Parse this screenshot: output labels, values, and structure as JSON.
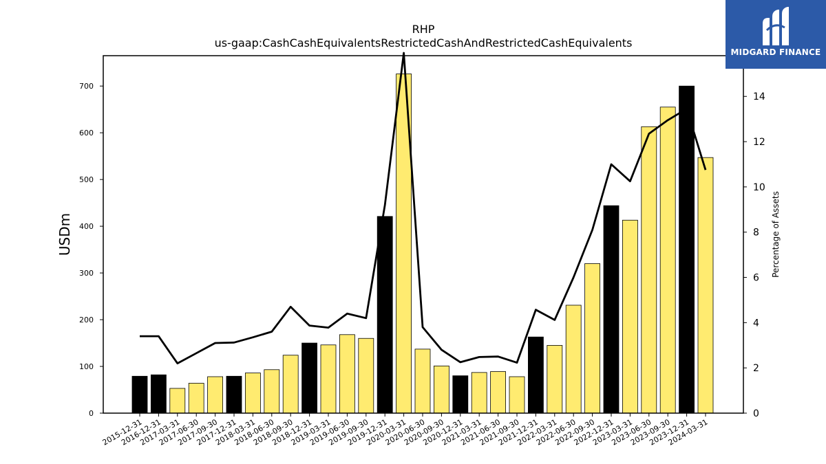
{
  "chart_data": {
    "type": "bar",
    "title": "RHP",
    "subtitle": "us-gaap:CashCashEquivalentsRestrictedCashAndRestrictedCashEquivalents",
    "ylabel": "USDm",
    "y2label": "Percentage of Assets",
    "ylim": [
      0,
      765
    ],
    "y2lim": [
      0,
      15.8
    ],
    "yticks": [
      0,
      100,
      200,
      300,
      400,
      500,
      600,
      700
    ],
    "y2ticks": [
      0,
      2,
      4,
      6,
      8,
      10,
      12,
      14
    ],
    "categories": [
      "2015-12-31",
      "2016-12-31",
      "2017-03-31",
      "2017-06-30",
      "2017-09-30",
      "2017-12-31",
      "2018-03-31",
      "2018-06-30",
      "2018-09-30",
      "2018-12-31",
      "2019-03-31",
      "2019-06-30",
      "2019-09-30",
      "2019-12-31",
      "2020-03-31",
      "2020-06-30",
      "2020-09-30",
      "2020-12-31",
      "2021-03-31",
      "2021-06-30",
      "2021-09-30",
      "2021-12-31",
      "2022-03-31",
      "2022-06-30",
      "2022-09-30",
      "2022-12-31",
      "2023-03-31",
      "2023-06-30",
      "2023-09-30",
      "2023-12-31",
      "2024-03-31"
    ],
    "series": [
      {
        "type": "bar",
        "values": [
          79,
          82,
          53,
          64,
          78,
          79,
          86,
          93,
          124,
          150,
          146,
          168,
          160,
          421,
          726,
          137,
          101,
          80,
          87,
          89,
          78,
          163,
          145,
          231,
          320,
          444,
          413,
          613,
          655,
          700,
          547
        ],
        "highlight": [
          true,
          true,
          false,
          false,
          false,
          true,
          false,
          false,
          false,
          true,
          false,
          false,
          false,
          true,
          false,
          false,
          false,
          true,
          false,
          false,
          false,
          true,
          false,
          false,
          false,
          true,
          false,
          false,
          false,
          true,
          false
        ],
        "color": "#ffeb70",
        "highlight_color": "#000000"
      },
      {
        "type": "line",
        "axis": "right",
        "color": "#000000",
        "values": [
          3.4,
          3.4,
          2.2,
          2.65,
          3.1,
          3.12,
          3.35,
          3.6,
          4.7,
          3.87,
          3.78,
          4.4,
          4.2,
          9.2,
          16.0,
          3.8,
          2.8,
          2.25,
          2.48,
          2.5,
          2.23,
          4.57,
          4.12,
          6.0,
          8.1,
          11.0,
          10.25,
          12.35,
          12.95,
          13.45,
          10.75
        ]
      }
    ],
    "grid": false,
    "legend": "none"
  },
  "logo": {
    "text": "MIDGARD FINANCE",
    "color": "#2c5aa8"
  }
}
